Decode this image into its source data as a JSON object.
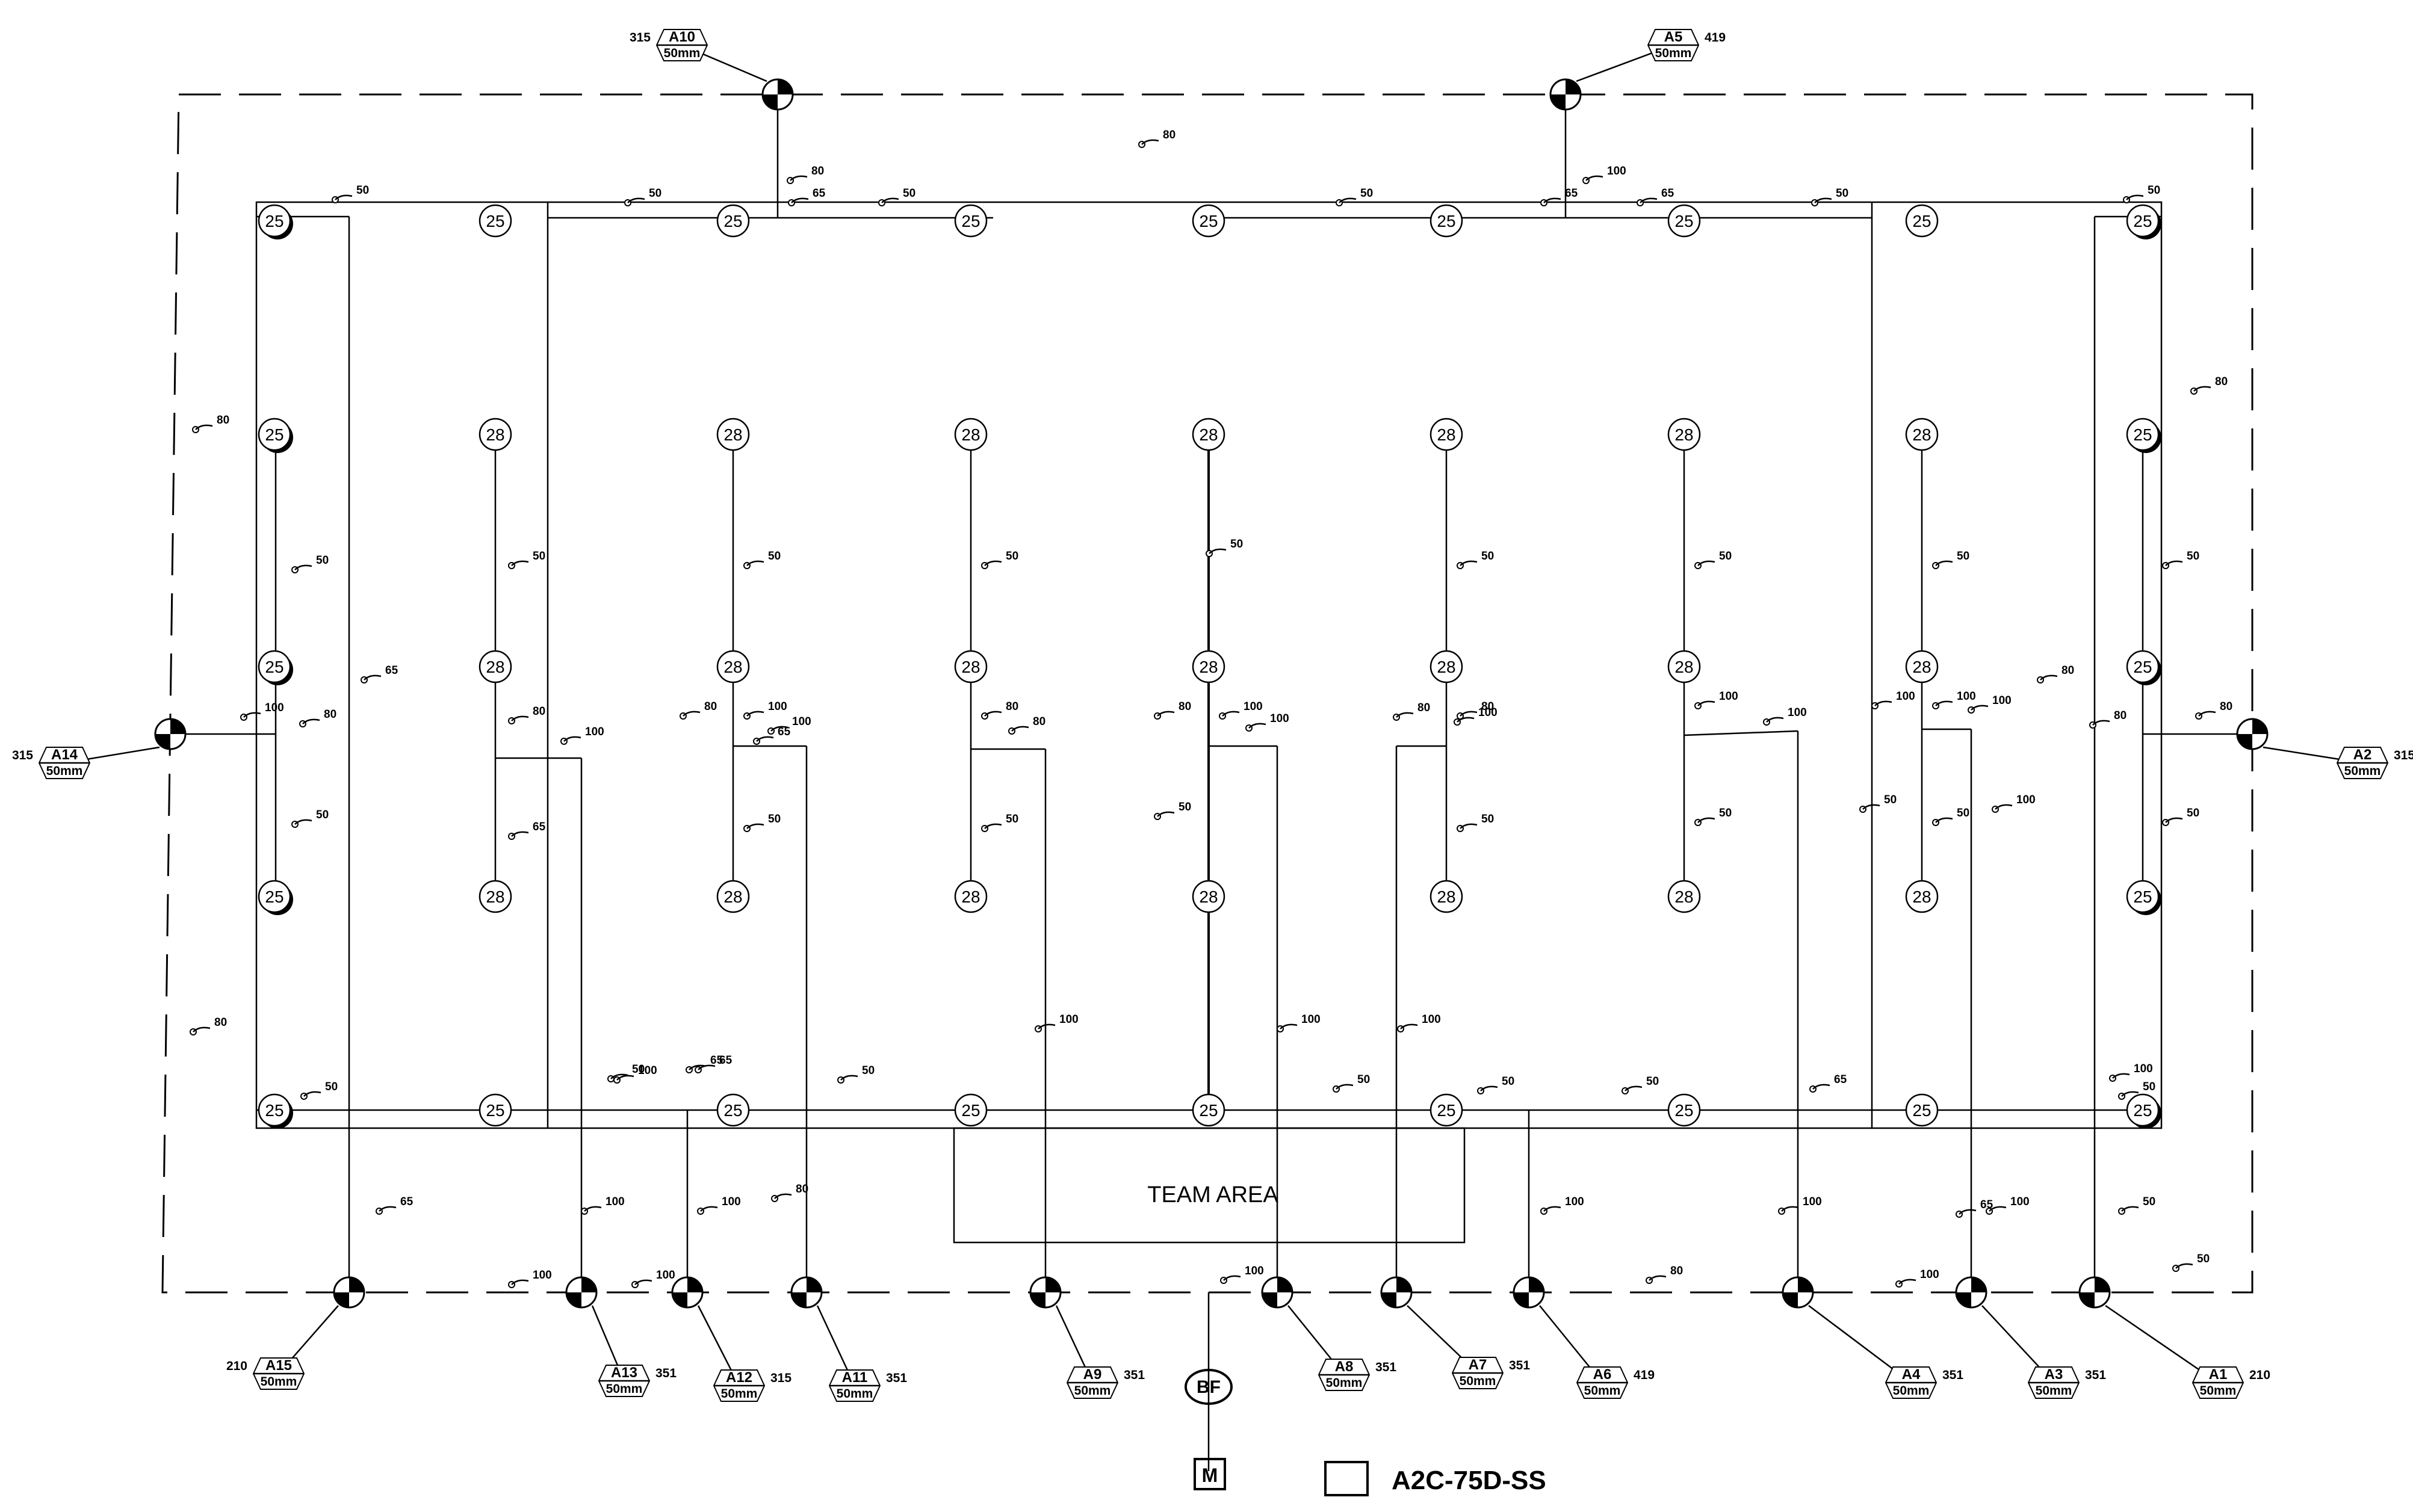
{
  "title": "A2C-75D-SS",
  "team_area": "TEAM AREA",
  "backflow": "BF",
  "meter": "M",
  "sprinklers": [
    {
      "n": "25",
      "dark": true
    },
    {
      "n": "25",
      "dark": false
    },
    {
      "n": "25",
      "dark": false
    },
    {
      "n": "25",
      "dark": false
    },
    {
      "n": "25",
      "dark": false
    },
    {
      "n": "25",
      "dark": false
    },
    {
      "n": "25",
      "dark": false
    },
    {
      "n": "25",
      "dark": false
    },
    {
      "n": "25",
      "dark": true
    },
    {
      "n": "25",
      "dark": true
    },
    {
      "n": "28",
      "dark": false
    },
    {
      "n": "28",
      "dark": false
    },
    {
      "n": "28",
      "dark": false
    },
    {
      "n": "28",
      "dark": false
    },
    {
      "n": "28",
      "dark": false
    },
    {
      "n": "28",
      "dark": false
    },
    {
      "n": "28",
      "dark": false
    },
    {
      "n": "25",
      "dark": true
    },
    {
      "n": "25",
      "dark": true
    },
    {
      "n": "28",
      "dark": false
    },
    {
      "n": "28",
      "dark": false
    },
    {
      "n": "28",
      "dark": false
    },
    {
      "n": "28",
      "dark": false
    },
    {
      "n": "28",
      "dark": false
    },
    {
      "n": "28",
      "dark": false
    },
    {
      "n": "28",
      "dark": false
    },
    {
      "n": "25",
      "dark": true
    },
    {
      "n": "25",
      "dark": true
    },
    {
      "n": "28",
      "dark": false
    },
    {
      "n": "28",
      "dark": false
    },
    {
      "n": "28",
      "dark": false
    },
    {
      "n": "28",
      "dark": false
    },
    {
      "n": "28",
      "dark": false
    },
    {
      "n": "28",
      "dark": false
    },
    {
      "n": "28",
      "dark": false
    },
    {
      "n": "25",
      "dark": true
    },
    {
      "n": "25",
      "dark": true
    },
    {
      "n": "25",
      "dark": false
    },
    {
      "n": "25",
      "dark": false
    },
    {
      "n": "25",
      "dark": false
    },
    {
      "n": "25",
      "dark": false
    },
    {
      "n": "25",
      "dark": false
    },
    {
      "n": "25",
      "dark": false
    },
    {
      "n": "25",
      "dark": false
    },
    {
      "n": "25",
      "dark": true
    }
  ],
  "valves": [
    {
      "id": "A1",
      "num": "210",
      "size": "50mm"
    },
    {
      "id": "A2",
      "num": "315",
      "size": "50mm"
    },
    {
      "id": "A3",
      "num": "351",
      "size": "50mm"
    },
    {
      "id": "A4",
      "num": "351",
      "size": "50mm"
    },
    {
      "id": "A5",
      "num": "419",
      "size": "50mm"
    },
    {
      "id": "A6",
      "num": "419",
      "size": "50mm"
    },
    {
      "id": "A7",
      "num": "351",
      "size": "50mm"
    },
    {
      "id": "A8",
      "num": "351",
      "size": "50mm"
    },
    {
      "id": "A9",
      "num": "351",
      "size": "50mm"
    },
    {
      "id": "A10",
      "num": "315",
      "size": "50mm"
    },
    {
      "id": "A11",
      "num": "351",
      "size": "50mm"
    },
    {
      "id": "A12",
      "num": "315",
      "size": "50mm"
    },
    {
      "id": "A13",
      "num": "351",
      "size": "50mm"
    },
    {
      "id": "A14",
      "num": "315",
      "size": "50mm"
    },
    {
      "id": "A15",
      "num": "210",
      "size": "50mm"
    }
  ],
  "pipe_labels": [
    "50",
    "50",
    "65",
    "50",
    "50",
    "65",
    "65",
    "50",
    "50",
    "80",
    "100",
    "80",
    "80",
    "80",
    "80",
    "50",
    "50",
    "50",
    "50",
    "50",
    "50",
    "50",
    "50",
    "50",
    "50",
    "65",
    "80",
    "80",
    "80",
    "100",
    "80",
    "100",
    "80",
    "100",
    "80",
    "100",
    "100",
    "80",
    "80",
    "100",
    "80",
    "80",
    "100",
    "50",
    "65",
    "50",
    "50",
    "50",
    "50",
    "50",
    "50",
    "50",
    "50",
    "100",
    "100",
    "100",
    "100",
    "50",
    "65",
    "50",
    "50",
    "65",
    "50",
    "50",
    "65",
    "100",
    "80",
    "100",
    "100",
    "100",
    "100",
    "100",
    "100",
    "65",
    "80",
    "100",
    "100",
    "100",
    "100",
    "80",
    "100",
    "100",
    "100",
    "100",
    "100",
    "50",
    "65",
    "50",
    "50",
    "65"
  ]
}
